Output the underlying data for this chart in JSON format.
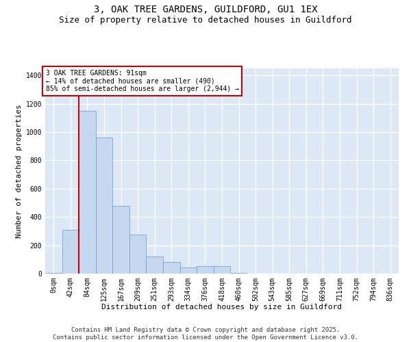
{
  "title_line1": "3, OAK TREE GARDENS, GUILDFORD, GU1 1EX",
  "title_line2": "Size of property relative to detached houses in Guildford",
  "xlabel": "Distribution of detached houses by size in Guildford",
  "ylabel": "Number of detached properties",
  "bar_color": "#c5d8ef",
  "bar_edge_color": "#6699cc",
  "background_color": "#dce8f5",
  "grid_color": "#ffffff",
  "vline_color": "#cc0000",
  "annotation_box_color": "#cc0000",
  "categories": [
    "0sqm",
    "42sqm",
    "84sqm",
    "125sqm",
    "167sqm",
    "209sqm",
    "251sqm",
    "293sqm",
    "334sqm",
    "376sqm",
    "418sqm",
    "460sqm",
    "502sqm",
    "543sqm",
    "585sqm",
    "627sqm",
    "669sqm",
    "711sqm",
    "752sqm",
    "794sqm",
    "836sqm"
  ],
  "values": [
    5,
    310,
    1150,
    960,
    480,
    275,
    120,
    80,
    45,
    55,
    55,
    5,
    0,
    0,
    0,
    0,
    0,
    0,
    0,
    0,
    0
  ],
  "ylim_max": 1450,
  "yticks": [
    0,
    200,
    400,
    600,
    800,
    1000,
    1200,
    1400
  ],
  "vline_x_index": 1.5,
  "annotation_text": "3 OAK TREE GARDENS: 91sqm\n← 14% of detached houses are smaller (490)\n85% of semi-detached houses are larger (2,944) →",
  "footer_line1": "Contains HM Land Registry data © Crown copyright and database right 2025.",
  "footer_line2": "Contains public sector information licensed under the Open Government Licence v3.0.",
  "title_fontsize": 10,
  "subtitle_fontsize": 9,
  "axis_label_fontsize": 8,
  "tick_fontsize": 7,
  "annotation_fontsize": 7,
  "footer_fontsize": 6.5
}
